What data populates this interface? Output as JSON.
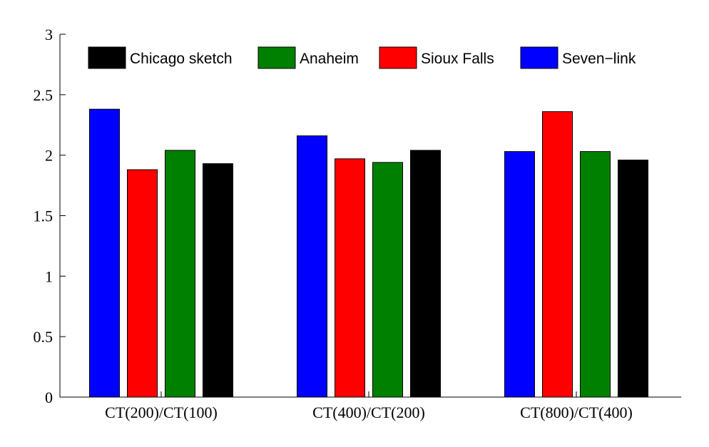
{
  "chart_data": {
    "type": "bar",
    "categories": [
      "CT(200)/CT(100)",
      "CT(400)/CT(200)",
      "CT(800)/CT(400)"
    ],
    "series": [
      {
        "name": "Seven−link",
        "color": "#0000ff",
        "values": [
          2.38,
          2.16,
          2.03
        ]
      },
      {
        "name": "Sioux Falls",
        "color": "#ff0000",
        "values": [
          1.88,
          1.97,
          2.36
        ]
      },
      {
        "name": "Anaheim",
        "color": "#008000",
        "values": [
          2.04,
          1.94,
          2.03
        ]
      },
      {
        "name": "Chicago sketch",
        "color": "#000000",
        "values": [
          1.93,
          2.04,
          1.96
        ]
      }
    ],
    "legend_order": [
      "Chicago sketch",
      "Anaheim",
      "Sioux Falls",
      "Seven−link"
    ],
    "legend_position": "top",
    "yticks": [
      "0",
      "0.5",
      "1",
      "1.5",
      "2",
      "2.5",
      "3"
    ],
    "ylim": [
      0,
      3
    ],
    "grid": false,
    "title": "",
    "xlabel": "",
    "ylabel": ""
  }
}
